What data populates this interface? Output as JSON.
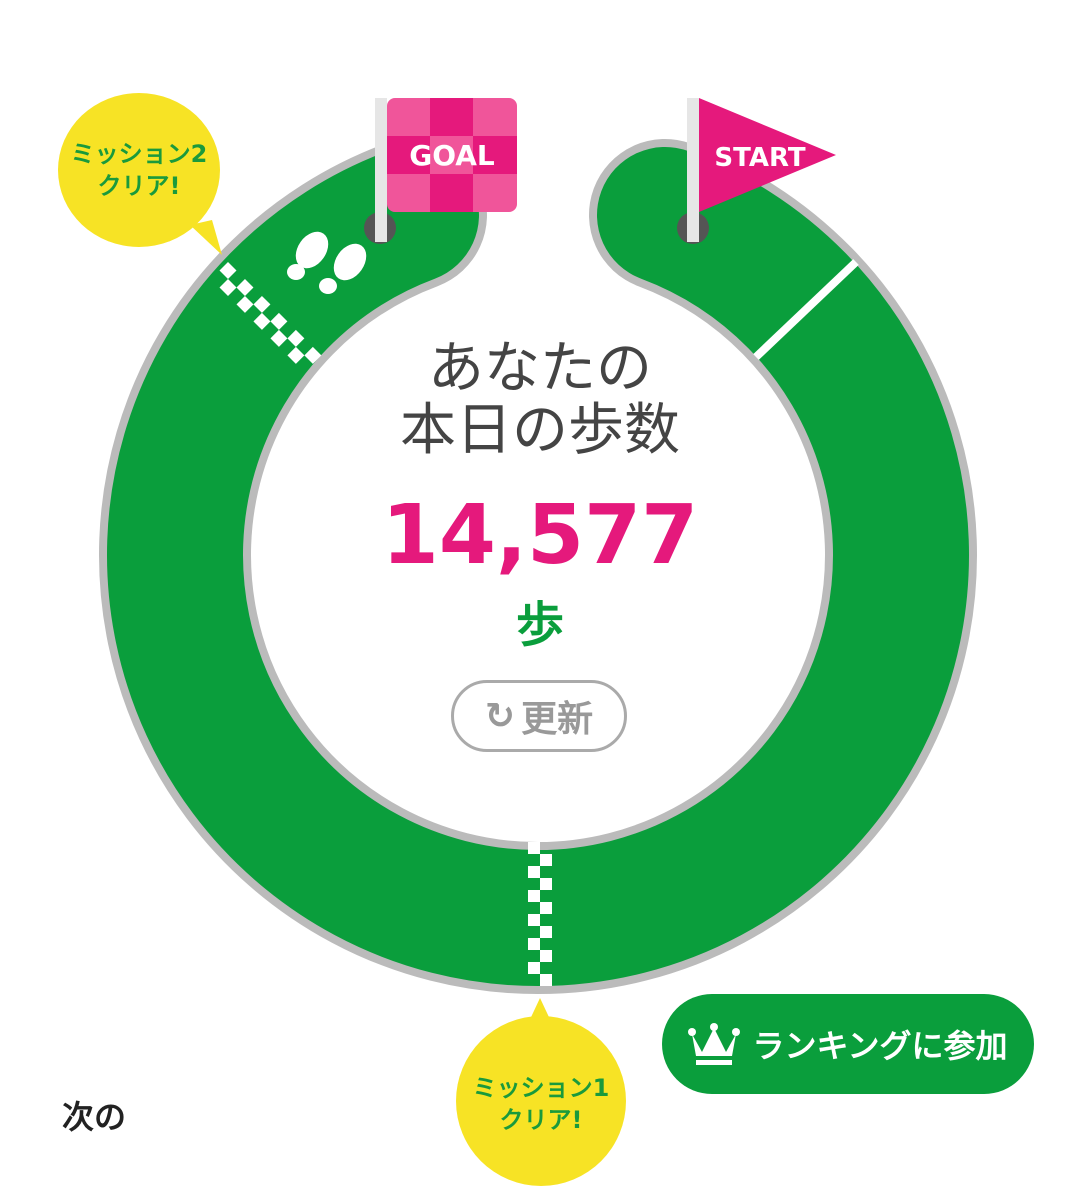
{
  "header": {
    "line1": "あなたの",
    "line2": "本日の歩数"
  },
  "steps": {
    "value": "14,577",
    "unit": "歩"
  },
  "refresh": {
    "label": "更新",
    "icon": "refresh-icon"
  },
  "flags": {
    "goal": "GOAL",
    "start": "START"
  },
  "bubbles": {
    "mission2": [
      "ミッション2",
      "クリア!"
    ],
    "mission1": [
      "ミッション1",
      "クリア!"
    ]
  },
  "ranking": {
    "label": "ランキングに参加",
    "icon": "crown-icon"
  },
  "next_label": "次の",
  "colors": {
    "green": "#0a9e3c",
    "pink": "#e5197c",
    "yellow": "#f7e325",
    "gray": "#bbbbbb"
  }
}
